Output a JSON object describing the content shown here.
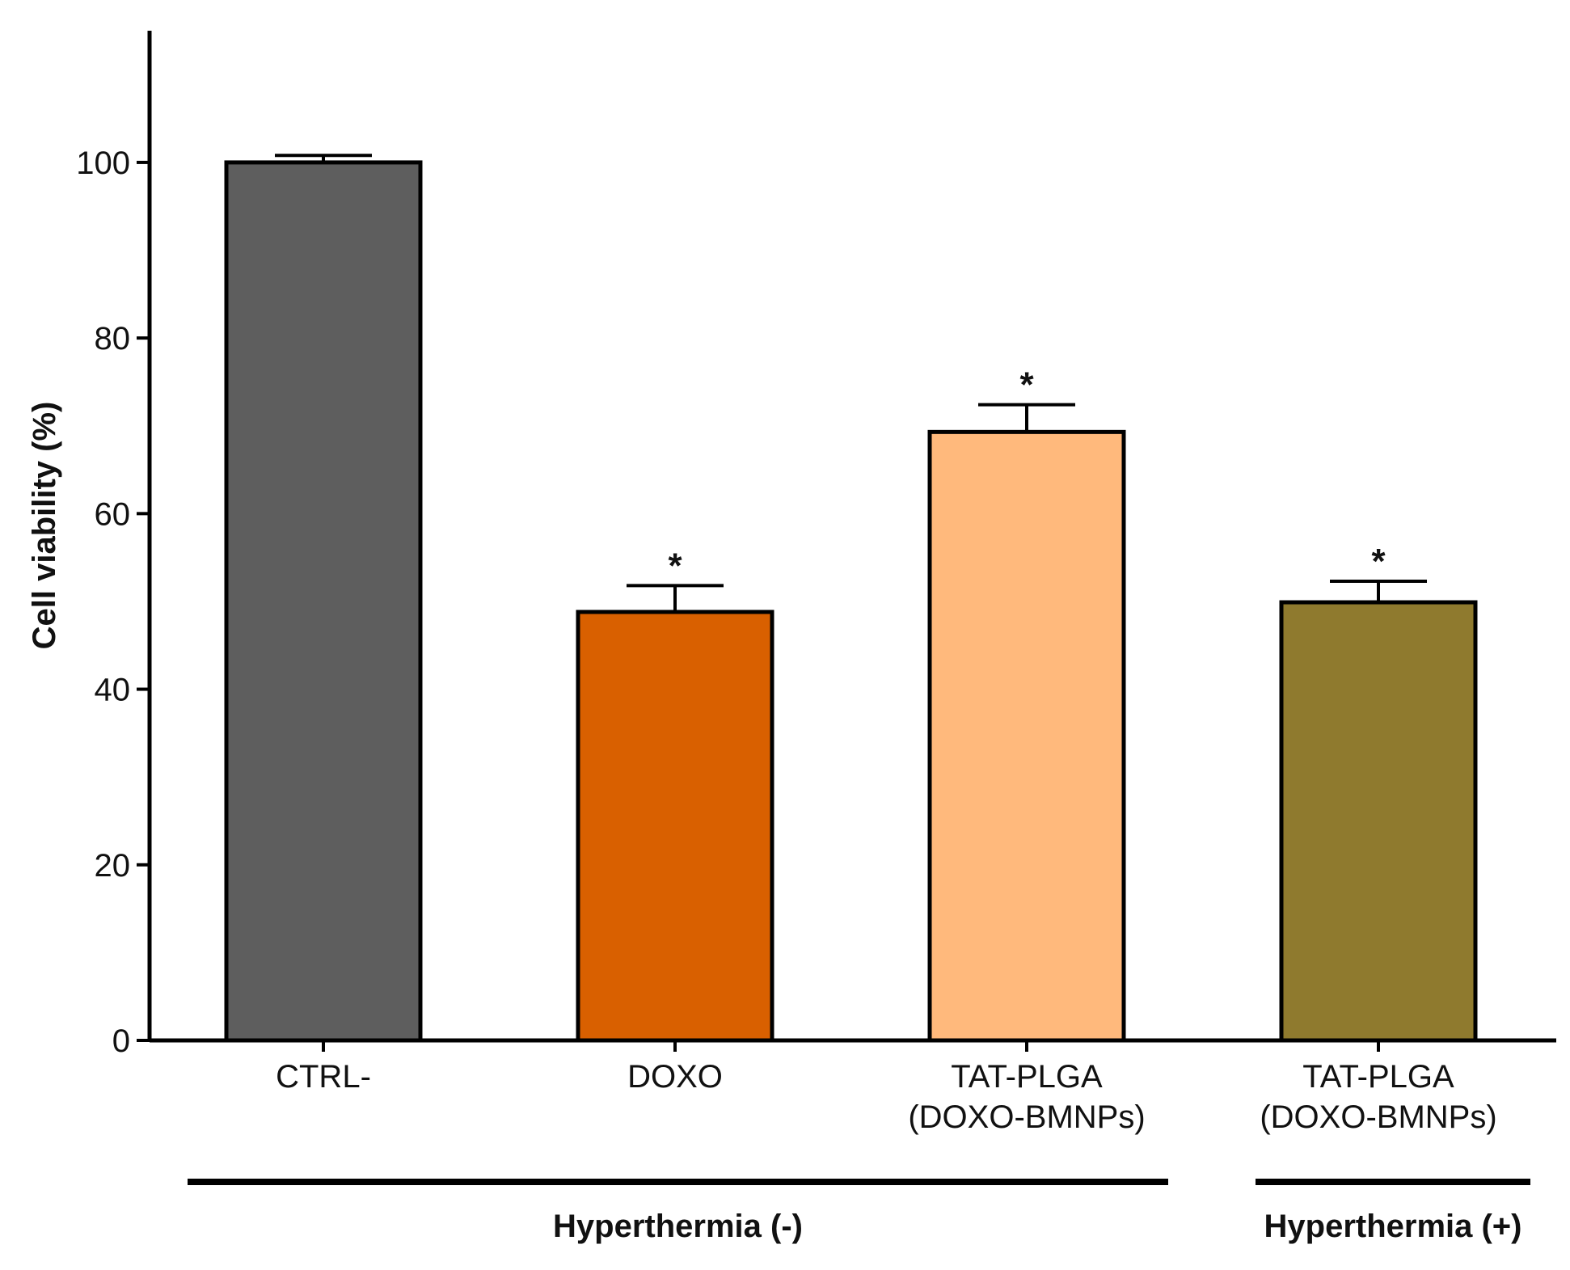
{
  "chart_data": {
    "type": "bar",
    "title": "",
    "xlabel": "",
    "ylabel": "Cell viability (%)",
    "ylim": [
      0,
      115
    ],
    "yticks": [
      0,
      20,
      40,
      60,
      80,
      100
    ],
    "grid": false,
    "categories": [
      {
        "lines": [
          "CTRL-"
        ]
      },
      {
        "lines": [
          "DOXO"
        ]
      },
      {
        "lines": [
          "TAT-PLGA",
          "(DOXO-BMNPs)"
        ]
      },
      {
        "lines": [
          "TAT-PLGA",
          "(DOXO-BMNPs)"
        ]
      }
    ],
    "values": [
      100,
      48.8,
      69.3,
      49.9
    ],
    "errors": [
      0.8,
      3.0,
      3.1,
      2.4
    ],
    "colors": [
      "#5e5e5e",
      "#d96000",
      "#ffb97c",
      "#8f7a2e"
    ],
    "significance": [
      "",
      "*",
      "*",
      "*"
    ],
    "groups": [
      {
        "label": "Hyperthermia (-)",
        "from": 0,
        "to": 2
      },
      {
        "label": "Hyperthermia (+)",
        "from": 3,
        "to": 3
      }
    ]
  }
}
